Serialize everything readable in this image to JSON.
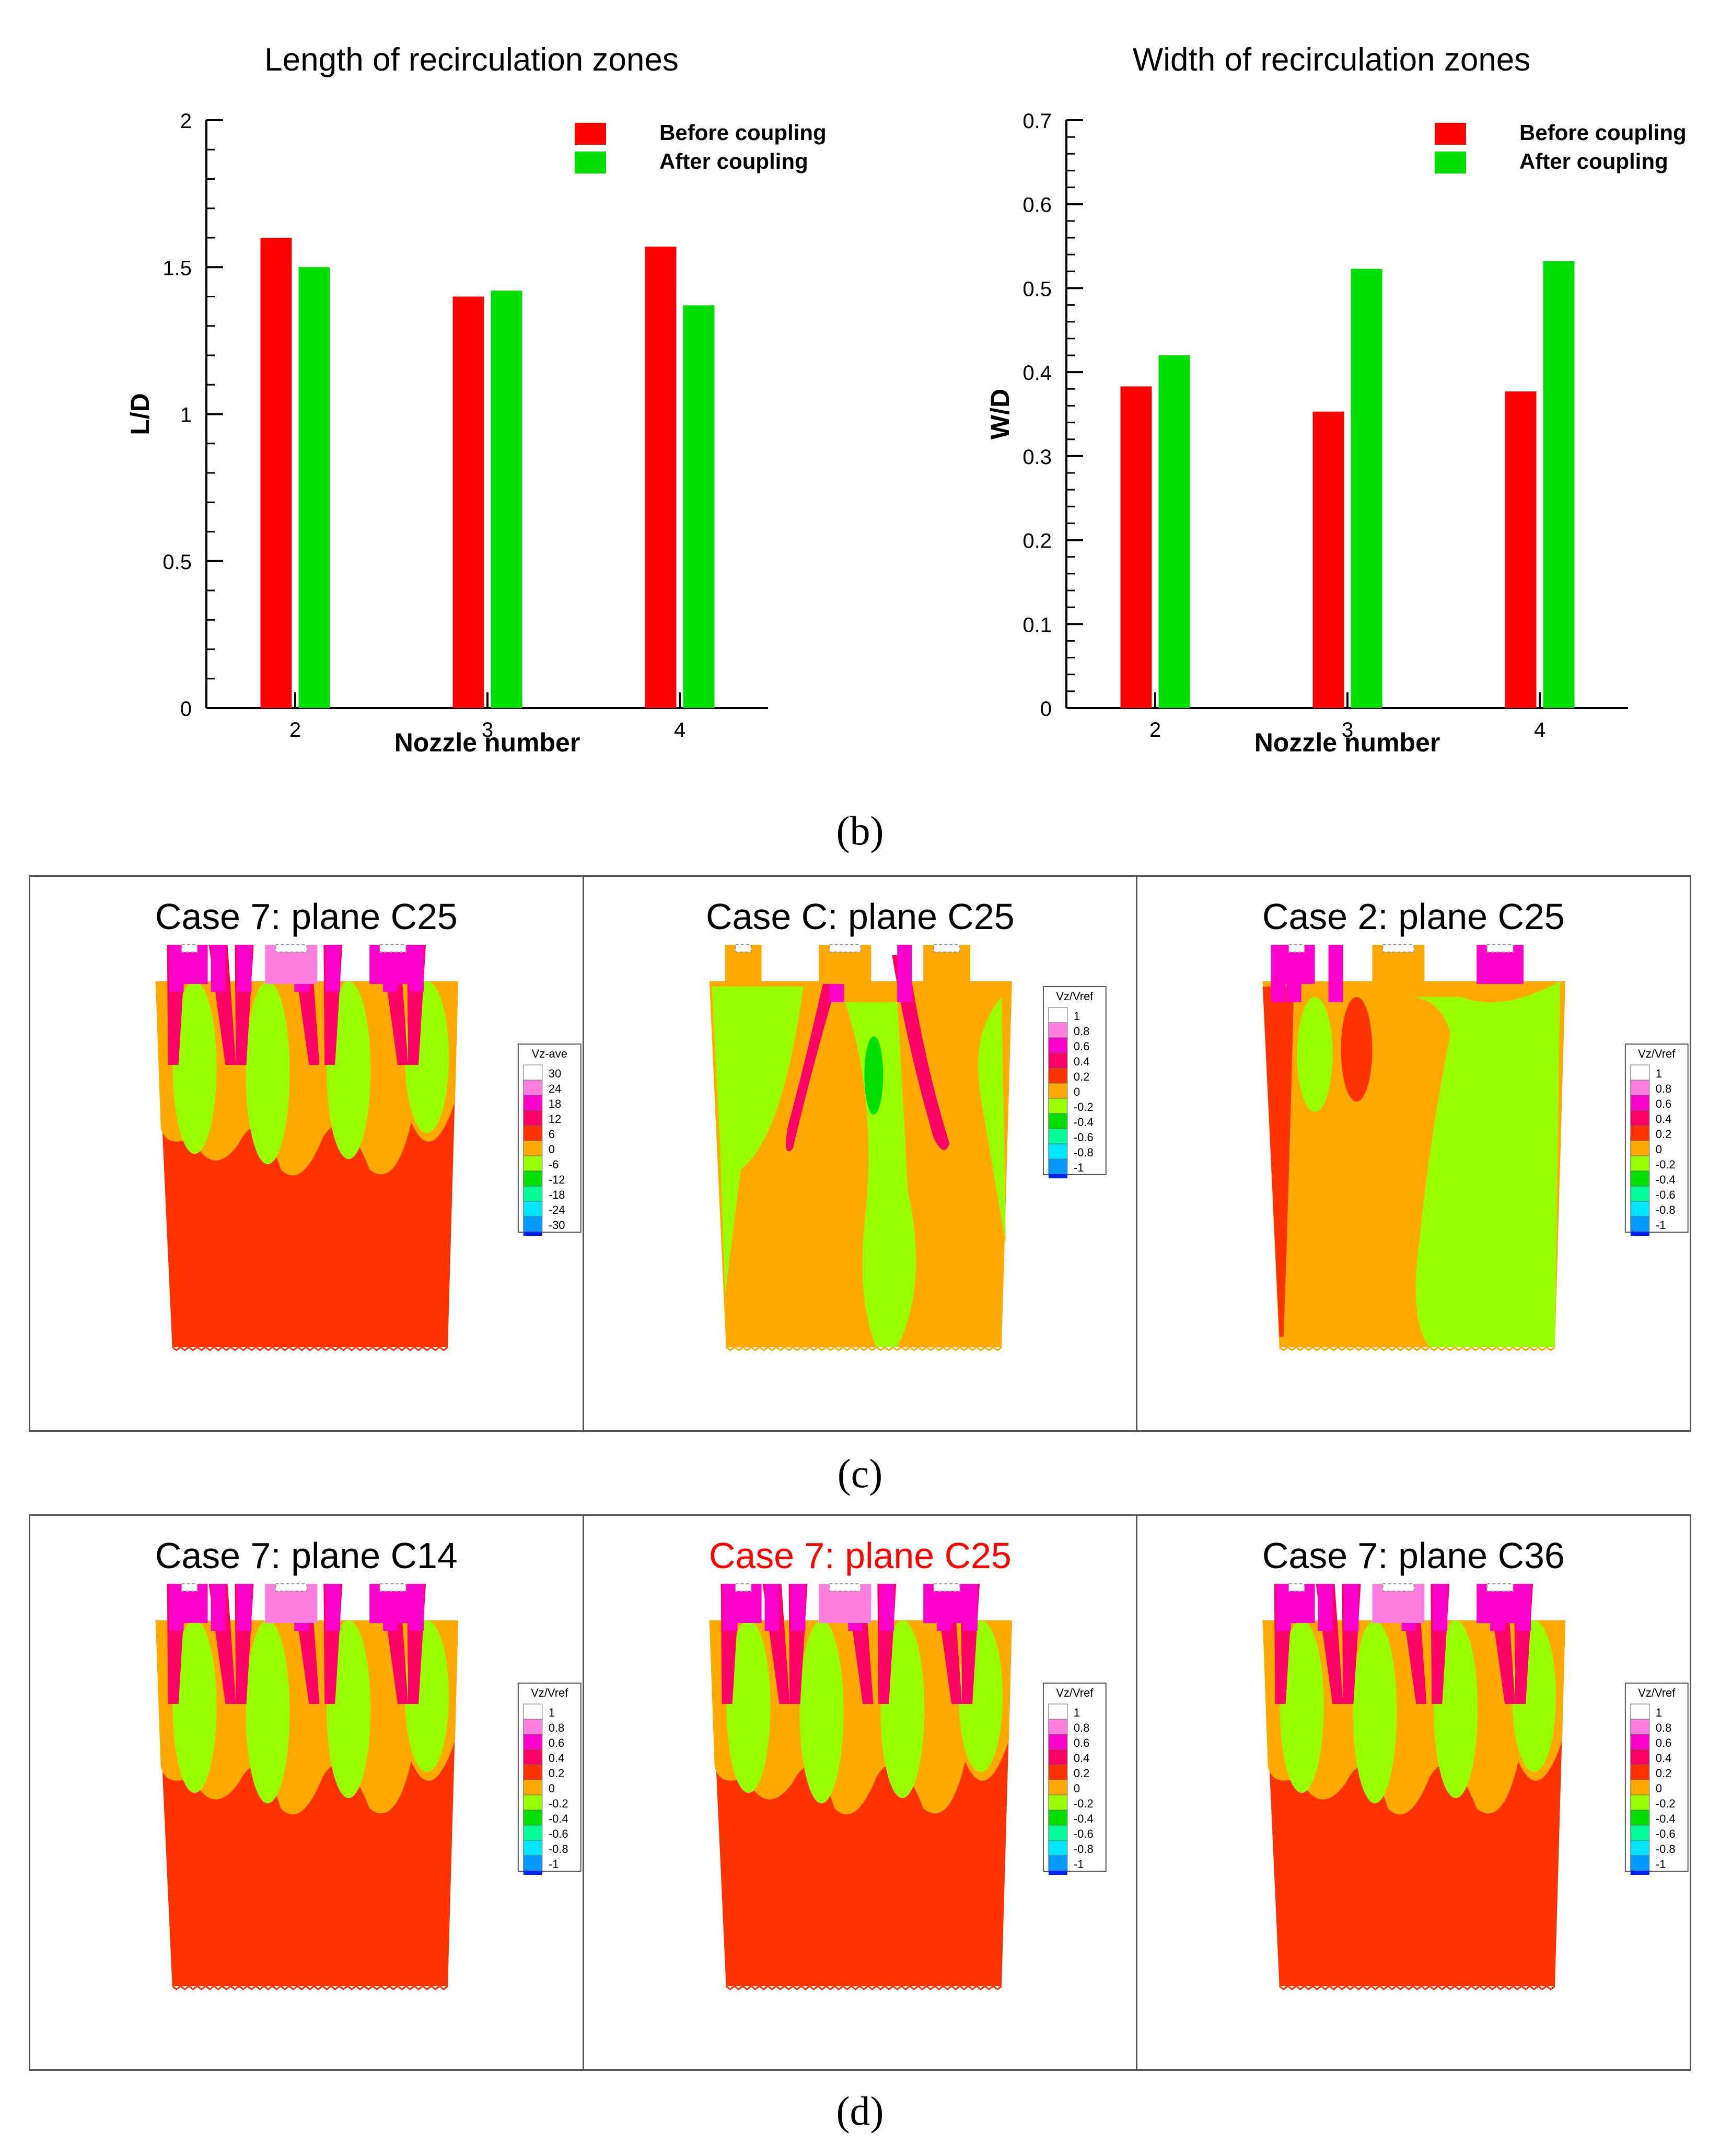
{
  "chart_data": [
    {
      "type": "bar",
      "title": "Length of recirculation zones",
      "xlabel": "Nozzle number",
      "ylabel": "L/D",
      "categories": [
        "2",
        "3",
        "4"
      ],
      "ylim": [
        0,
        2
      ],
      "yticks": [
        "0",
        "0.5",
        "1",
        "1.5",
        "2"
      ],
      "ytick_values": [
        0,
        0.5,
        1,
        1.5,
        2
      ],
      "legend": "top-right",
      "series": [
        {
          "name": "Before coupling",
          "color": "#ff0000",
          "values": [
            1.6,
            1.4,
            1.57
          ]
        },
        {
          "name": "After coupling",
          "color": "#00dd00",
          "values": [
            1.5,
            1.42,
            1.37
          ]
        }
      ]
    },
    {
      "type": "bar",
      "title": "Width of recirculation zones",
      "xlabel": "Nozzle number",
      "ylabel": "W/D",
      "categories": [
        "2",
        "3",
        "4"
      ],
      "ylim": [
        0,
        0.7
      ],
      "yticks": [
        "0",
        "0.1",
        "0.2",
        "0.3",
        "0.4",
        "0.5",
        "0.6",
        "0.7"
      ],
      "ytick_values": [
        0,
        0.1,
        0.2,
        0.3,
        0.4,
        0.5,
        0.6,
        0.7
      ],
      "legend": "top-right",
      "series": [
        {
          "name": "Before coupling",
          "color": "#ff0000",
          "values": [
            0.383,
            0.353,
            0.377
          ]
        },
        {
          "name": "After coupling",
          "color": "#00dd00",
          "values": [
            0.42,
            0.523,
            0.532
          ]
        }
      ]
    }
  ],
  "labels": {
    "b": "(b)",
    "c": "(c)",
    "d": "(d)"
  },
  "rows": [
    {
      "panels": [
        {
          "title": "Case 7: plane C25",
          "variant": "case7",
          "legend_title": "Vz-ave",
          "legend_values": [
            "30",
            "24",
            "18",
            "12",
            "6",
            "0",
            "-6",
            "-12",
            "-18",
            "-24",
            "-30"
          ]
        },
        {
          "title": "Case C: plane C25",
          "variant": "caseC",
          "legend_title": "Vz/Vref",
          "legend_values": [
            "1",
            "0.8",
            "0.6",
            "0.4",
            "0.2",
            "0",
            "-0.2",
            "-0.4",
            "-0.6",
            "-0.8",
            "-1"
          ]
        },
        {
          "title": "Case 2: plane C25",
          "variant": "case2",
          "legend_title": "Vz/Vref",
          "legend_values": [
            "1",
            "0.8",
            "0.6",
            "0.4",
            "0.2",
            "0",
            "-0.2",
            "-0.4",
            "-0.6",
            "-0.8",
            "-1"
          ]
        }
      ]
    },
    {
      "panels": [
        {
          "title": "Case 7: plane C14",
          "variant": "case7",
          "legend_title": "Vz/Vref",
          "legend_values": [
            "1",
            "0.8",
            "0.6",
            "0.4",
            "0.2",
            "0",
            "-0.2",
            "-0.4",
            "-0.6",
            "-0.8",
            "-1"
          ]
        },
        {
          "title": "Case 7: plane C25",
          "variant": "case7",
          "title_color": "#ff0000",
          "legend_title": "Vz/Vref",
          "legend_values": [
            "1",
            "0.8",
            "0.6",
            "0.4",
            "0.2",
            "0",
            "-0.2",
            "-0.4",
            "-0.6",
            "-0.8",
            "-1"
          ]
        },
        {
          "title": "Case 7: plane C36",
          "variant": "case7",
          "legend_title": "Vz/Vref",
          "legend_values": [
            "1",
            "0.8",
            "0.6",
            "0.4",
            "0.2",
            "0",
            "-0.2",
            "-0.4",
            "-0.6",
            "-0.8",
            "-1"
          ]
        }
      ]
    }
  ],
  "colormap": [
    "#ffffff",
    "#ff7fe0",
    "#ff00cc",
    "#ff0066",
    "#ff3300",
    "#ffaa00",
    "#99ff00",
    "#00dd00",
    "#00ff99",
    "#00e5ff",
    "#0099ff",
    "#0022ee"
  ]
}
